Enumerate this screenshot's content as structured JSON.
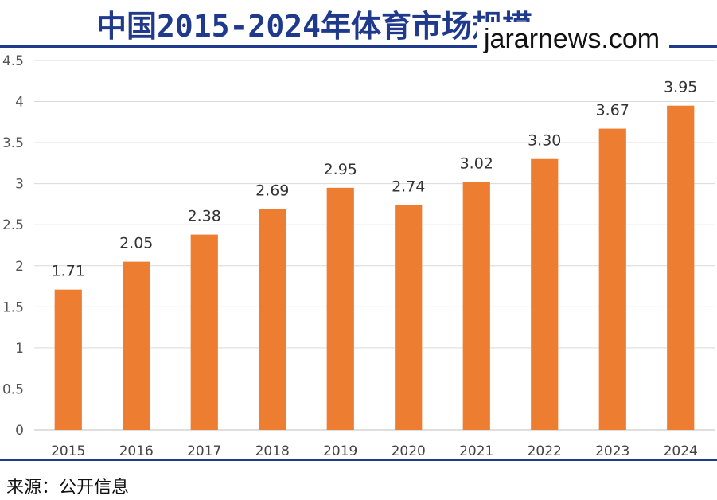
{
  "title": "中国2015-2024年体育市场规模",
  "watermark": "jararnews.com",
  "source": "来源：公开信息",
  "colors": {
    "bar": "#ed7d31",
    "accent": "#1f3a8c",
    "grid": "#d9d9d9"
  },
  "chart_data": {
    "type": "bar",
    "title": "中国2015-2024年体育市场规模",
    "categories": [
      "2015",
      "2016",
      "2017",
      "2018",
      "2019",
      "2020",
      "2021",
      "2022",
      "2023",
      "2024"
    ],
    "values": [
      1.71,
      2.05,
      2.38,
      2.69,
      2.95,
      2.74,
      3.02,
      3.3,
      3.67,
      3.95
    ],
    "data_labels": [
      "1.71",
      "2.05",
      "2.38",
      "2.69",
      "2.95",
      "2.74",
      "3.02",
      "3.30",
      "3.67",
      "3.95"
    ],
    "yticks": [
      "0",
      "0.5",
      "1",
      "1.5",
      "2",
      "2.5",
      "3",
      "3.5",
      "4",
      "4.5"
    ],
    "ylim": [
      0,
      4.5
    ],
    "grid": true,
    "legend": "none",
    "xlabel": "",
    "ylabel": ""
  }
}
